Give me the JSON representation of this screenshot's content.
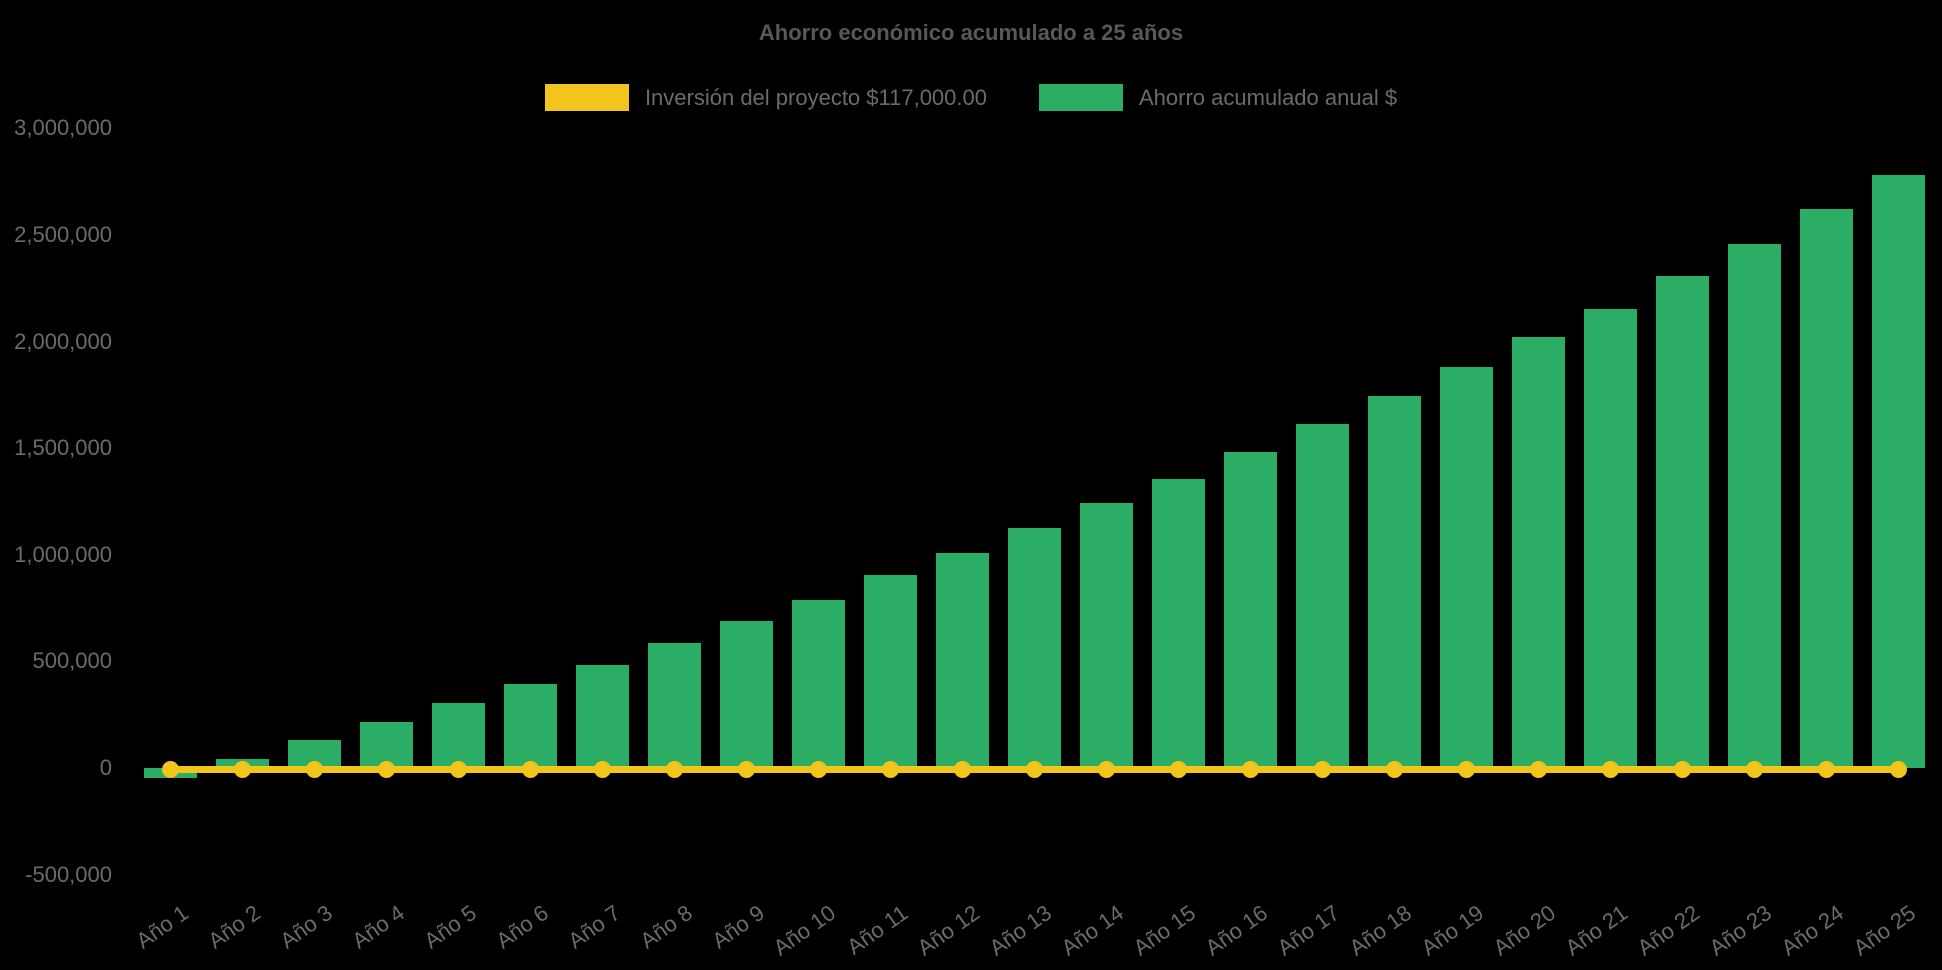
{
  "chart_data": {
    "type": "bar",
    "title": "Ahorro económico acumulado a 25 años",
    "background_color": "#000000",
    "text_color": "#6b6b6e",
    "title_color": "#58585a",
    "legend_position": "top",
    "grid": false,
    "categories": [
      "Año 1",
      "Año 2",
      "Año 3",
      "Año 4",
      "Año 5",
      "Año 6",
      "Año 7",
      "Año 8",
      "Año 9",
      "Año 10",
      "Año 11",
      "Año 12",
      "Año 13",
      "Año 14",
      "Año 15",
      "Año 16",
      "Año 17",
      "Año 18",
      "Año 19",
      "Año 20",
      "Año 21",
      "Año 22",
      "Año 23",
      "Año 24",
      "Año 25"
    ],
    "series": [
      {
        "name": "Inversión del proyecto $117,000.00",
        "type": "line",
        "color": "#f2c51d",
        "marker": "circle",
        "constant_value": 117000,
        "rendered_at_baseline": true,
        "values": [
          117000,
          117000,
          117000,
          117000,
          117000,
          117000,
          117000,
          117000,
          117000,
          117000,
          117000,
          117000,
          117000,
          117000,
          117000,
          117000,
          117000,
          117000,
          117000,
          117000,
          117000,
          117000,
          117000,
          117000,
          117000
        ]
      },
      {
        "name": "Ahorro acumulado anual $",
        "type": "bar",
        "color": "#2bad66",
        "values": [
          -45000,
          40000,
          130000,
          215000,
          305000,
          395000,
          485000,
          585000,
          690000,
          790000,
          905000,
          1010000,
          1125000,
          1245000,
          1355000,
          1480000,
          1615000,
          1745000,
          1880000,
          2020000,
          2155000,
          2310000,
          2460000,
          2620000,
          2780000
        ]
      }
    ],
    "y_axis": {
      "min": -500000,
      "max": 3000000,
      "tick_step": 500000,
      "ticks": [
        {
          "value": 3000000,
          "label": "3,000,000"
        },
        {
          "value": 2500000,
          "label": "2,500,000"
        },
        {
          "value": 2000000,
          "label": "2,000,000"
        },
        {
          "value": 1500000,
          "label": "1,500,000"
        },
        {
          "value": 1000000,
          "label": "1,000,000"
        },
        {
          "value": 500000,
          "label": "500,000"
        },
        {
          "value": 0,
          "label": "0"
        },
        {
          "value": -500000,
          "label": "-500,000"
        }
      ]
    },
    "x_axis": {
      "label_rotation_deg": -35
    }
  }
}
